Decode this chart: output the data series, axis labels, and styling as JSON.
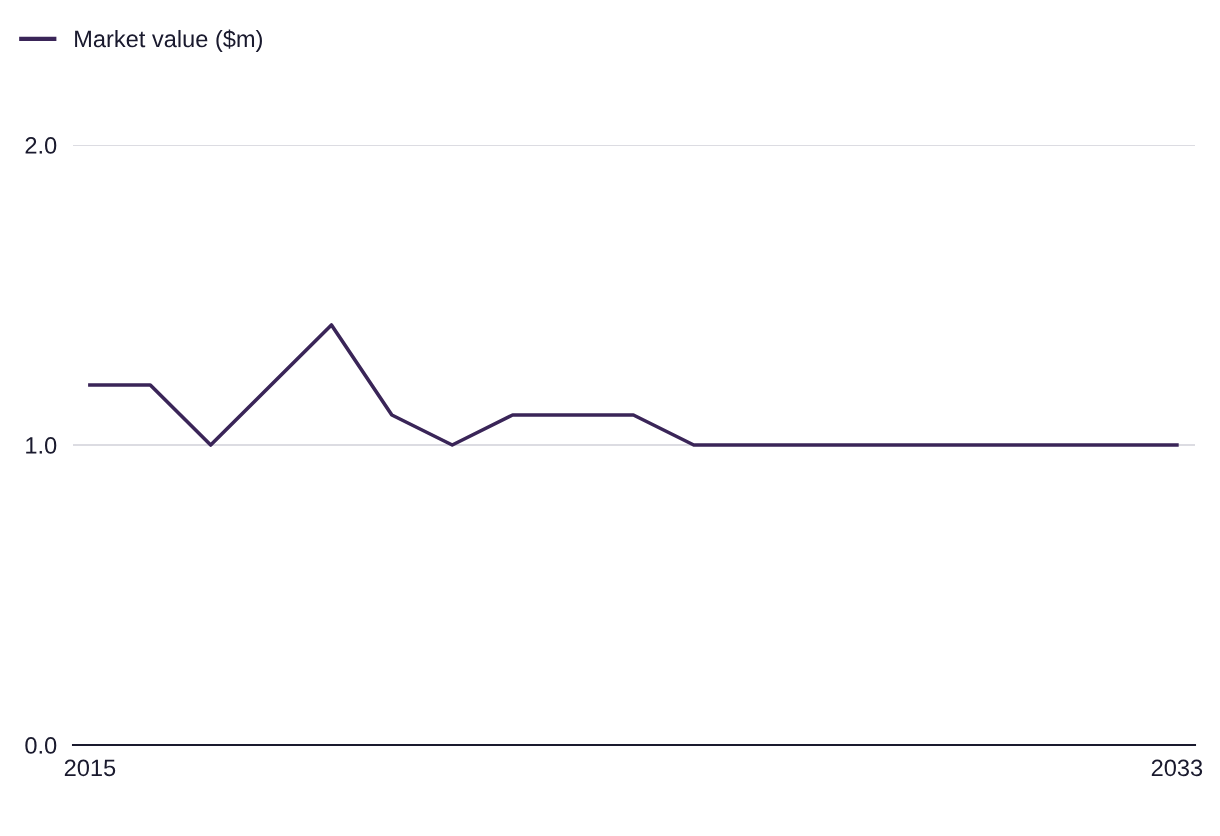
{
  "chart_data": {
    "type": "line",
    "x": [
      2015,
      2016,
      2017,
      2018,
      2019,
      2020,
      2021,
      2022,
      2023,
      2024,
      2025,
      2026,
      2027,
      2028,
      2029,
      2030,
      2031,
      2032,
      2033
    ],
    "series": [
      {
        "name": "Market value ($m)",
        "color": "#3a2558",
        "values": [
          1.2,
          1.2,
          1.0,
          1.2,
          1.4,
          1.1,
          1.0,
          1.1,
          1.1,
          1.1,
          1.0,
          1.0,
          1.0,
          1.0,
          1.0,
          1.0,
          1.0,
          1.0,
          1.0
        ]
      }
    ],
    "xlim": [
      2014.72,
      2033.3
    ],
    "xticks": [
      2015,
      2033
    ],
    "ylim": [
      0,
      2.0
    ],
    "yticks": [
      {
        "value": 0,
        "label": "0.0"
      },
      {
        "value": 1.0,
        "label": "1.0"
      },
      {
        "value": 2.0,
        "label": "2.0"
      }
    ],
    "grid": "y",
    "legend": "top left",
    "marker": "none",
    "line_style": "solid"
  }
}
